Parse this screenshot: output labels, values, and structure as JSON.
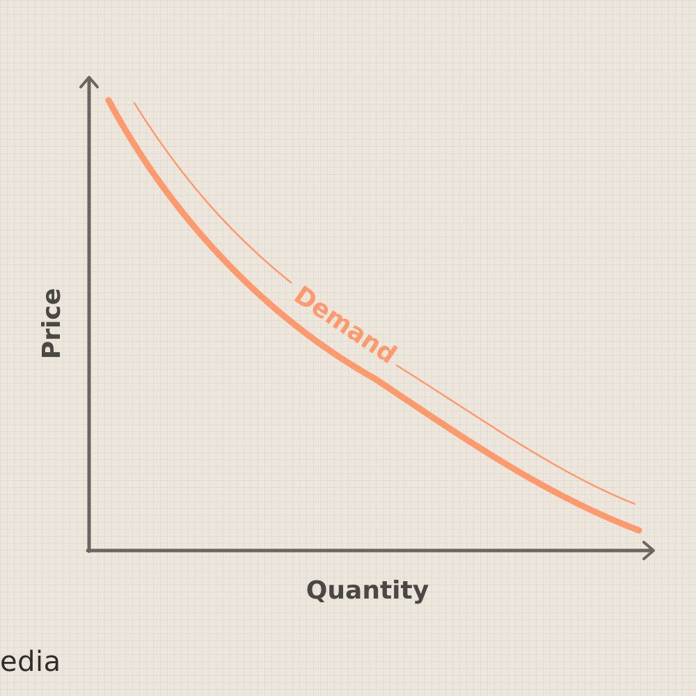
{
  "diagram": {
    "curve_label": "Demand",
    "x_axis_label": "Quantity",
    "y_axis_label": "Price",
    "colors": {
      "background": "#ece6dc",
      "axis": "#6b6561",
      "curve": "#ff9a6e",
      "label_text": "#4a4744"
    }
  },
  "watermark": {
    "text": "edia"
  }
}
